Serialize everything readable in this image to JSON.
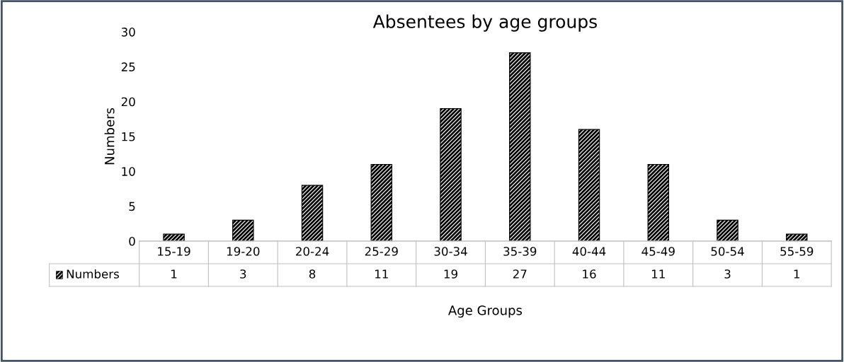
{
  "chart_data": {
    "type": "bar",
    "title": "Absentees by age groups",
    "xlabel": "Age Groups",
    "ylabel": "Numbers",
    "categories": [
      "15-19",
      "19-20",
      "20-24",
      "25-29",
      "30-34",
      "35-39",
      "40-44",
      "45-49",
      "50-54",
      "55-59"
    ],
    "series": [
      {
        "name": "Numbers",
        "color": "#000000",
        "values": [
          1,
          3,
          8,
          11,
          19,
          27,
          16,
          11,
          3,
          1
        ]
      }
    ],
    "ylim": [
      0,
      30
    ],
    "yticks": [
      0,
      5,
      10,
      15,
      20,
      25,
      30
    ],
    "data_labels": true,
    "grid": false,
    "legend": "bottom"
  }
}
